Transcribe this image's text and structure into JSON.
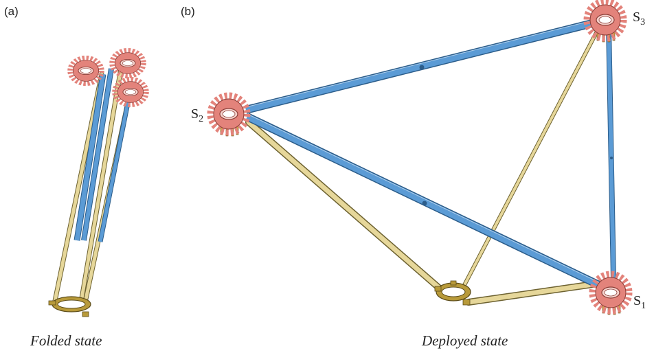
{
  "panels": {
    "a": {
      "label": "(a)",
      "caption": "Folded state"
    },
    "b": {
      "label": "(b)",
      "caption": "Deployed state"
    }
  },
  "nodes": {
    "s1": {
      "letter": "S",
      "sub": "1"
    },
    "s2": {
      "letter": "S",
      "sub": "2"
    },
    "s3": {
      "letter": "S",
      "sub": "3"
    }
  },
  "colors": {
    "blue_strut": "#5b9bd5",
    "blue_edge": "#2c5d8a",
    "yellow_strut": "#e6d79a",
    "yellow_edge": "#6d6231",
    "hub_salmon": "#e3837b",
    "hub_edge": "#8a3d37",
    "hub_inner": "#f6d2cc",
    "clamp_gold": "#b89a3a",
    "clamp_edge": "#5a4a17"
  }
}
